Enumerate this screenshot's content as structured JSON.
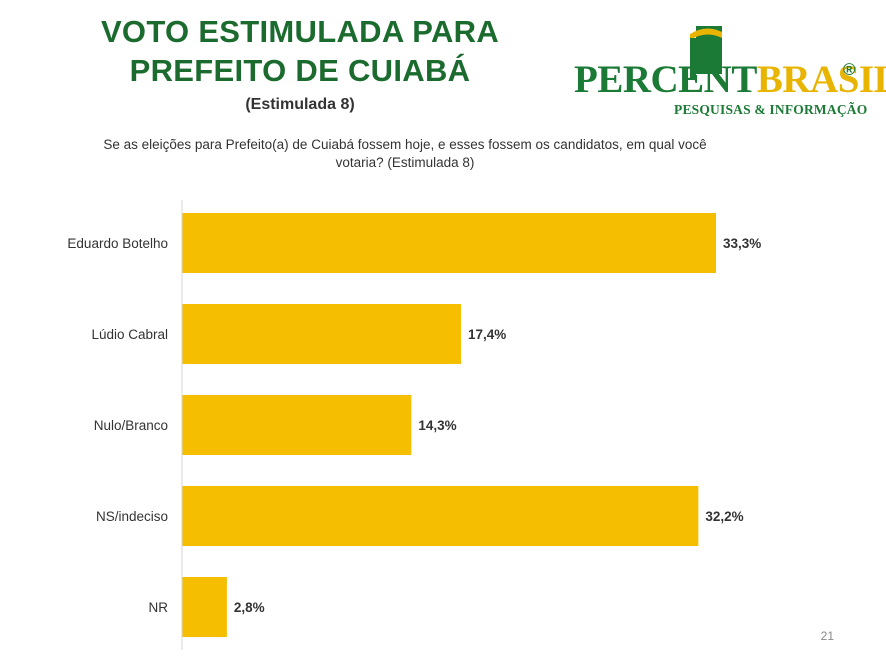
{
  "header": {
    "title_line1": "VOTO ESTIMULADA PARA",
    "title_line2": "PREFEITO DE CUIABÁ",
    "subtitle": "(Estimulada  8)",
    "question_line1": "Se as  eleições para Prefeito(a) de Cuiabá fossem hoje, e esses fossem os candidatos, em qual você",
    "question_line2": "votaria? (Estimulada 8)"
  },
  "logo": {
    "name_part1": "PERCENT",
    "name_part2": "BRASIL",
    "registered": "®",
    "tagline": "PESQUISAS & INFORMAÇÃO",
    "colors": {
      "green": "#1b7a35",
      "yellow": "#e8b400"
    }
  },
  "chart_data": {
    "type": "bar",
    "orientation": "horizontal",
    "categories": [
      "Eduardo Botelho",
      "Lúdio Cabral",
      "Nulo/Branco",
      "NS/indeciso",
      "NR"
    ],
    "values": [
      33.3,
      17.4,
      14.3,
      32.2,
      2.8
    ],
    "value_labels": [
      "33,3%",
      "17,4%",
      "14,3%",
      "32,2%",
      "2,8%"
    ],
    "xlim": [
      0,
      35
    ],
    "grid": false,
    "legend": "none",
    "bar_color": "#f5bf00"
  },
  "footer": {
    "page_number": "21"
  }
}
